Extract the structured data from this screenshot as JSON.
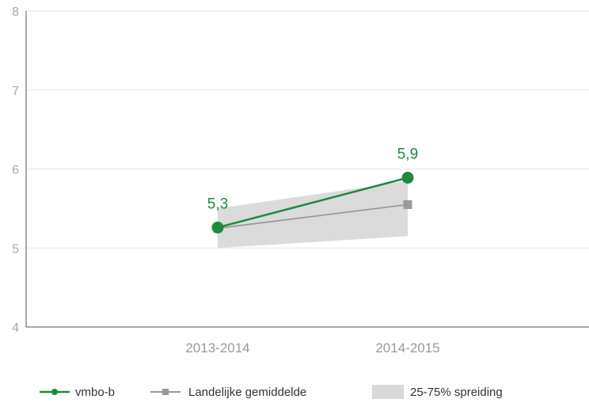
{
  "chart_data": {
    "type": "line",
    "categories": [
      "2013-2014",
      "2014-2015"
    ],
    "ylim": [
      4,
      8
    ],
    "yticks": [
      "4",
      "5",
      "6",
      "7",
      "8"
    ],
    "grid": true,
    "legend_position": "bottom",
    "series": [
      {
        "name": "vmbo-b",
        "values": [
          5.26,
          5.89
        ],
        "labels": [
          "5,3",
          "5,9"
        ],
        "color": "#1e8a3c",
        "marker": "circle"
      },
      {
        "name": "Landelijke gemiddelde",
        "values": [
          5.25,
          5.55
        ],
        "color": "#999999",
        "marker": "square"
      }
    ],
    "band": {
      "name": "25-75% spreiding",
      "low": [
        5.0,
        5.15
      ],
      "high": [
        5.5,
        5.85
      ],
      "color": "#d9d9d9"
    }
  }
}
